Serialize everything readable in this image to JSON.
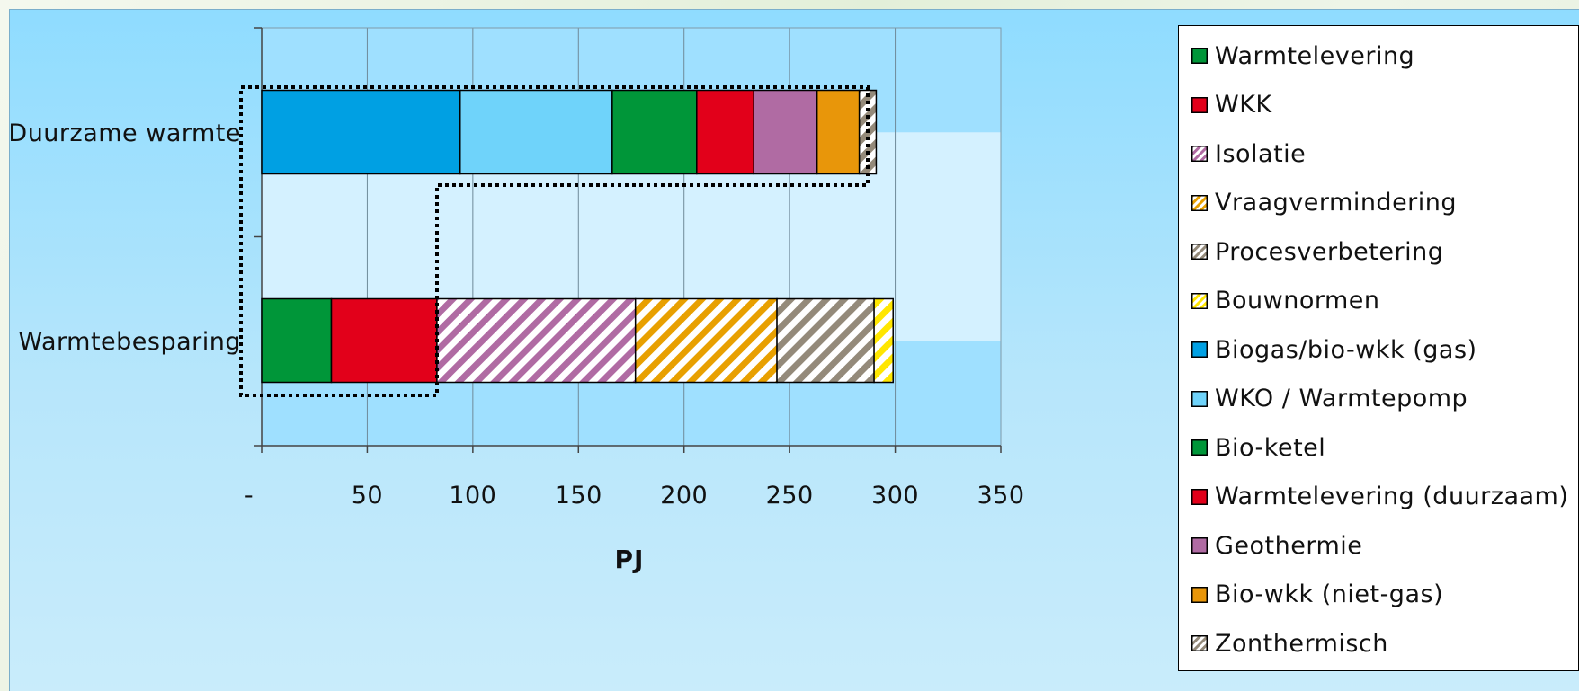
{
  "chart_data": {
    "type": "bar",
    "orientation": "horizontal",
    "stacked": true,
    "title": "",
    "xlabel": "PJ",
    "ylabel": "",
    "xlim": [
      0,
      350
    ],
    "x_ticks": [
      0,
      50,
      100,
      150,
      200,
      250,
      300,
      350
    ],
    "x_tick_labels": [
      "-",
      "50",
      "100",
      "150",
      "200",
      "250",
      "300",
      "350"
    ],
    "grid": "vertical",
    "legend_position": "right",
    "categories": [
      "Duurzame warmte",
      "Warmtebesparing"
    ],
    "series": [
      {
        "name": "Warmtelevering",
        "color": "#009639",
        "pattern": "solid",
        "values": [
          0,
          33
        ]
      },
      {
        "name": "WKK",
        "color": "#e2001a",
        "pattern": "solid",
        "values": [
          0,
          50
        ]
      },
      {
        "name": "Isolatie",
        "color": "#b06ba3",
        "pattern": "hatch",
        "values": [
          0,
          94
        ]
      },
      {
        "name": "Vraagvermindering",
        "color": "#e8a000",
        "pattern": "hatch",
        "values": [
          0,
          67
        ]
      },
      {
        "name": "Procesverbetering",
        "color": "#948a7a",
        "pattern": "hatch",
        "values": [
          0,
          46
        ]
      },
      {
        "name": "Bouwnormen",
        "color": "#ffe600",
        "pattern": "hatch",
        "values": [
          0,
          9
        ]
      },
      {
        "name": "Biogas/bio-wkk (gas)",
        "color": "#00a0e3",
        "pattern": "solid",
        "values": [
          94,
          0
        ]
      },
      {
        "name": "WKO / Warmtepomp",
        "color": "#6fd3fa",
        "pattern": "solid",
        "values": [
          72,
          0
        ]
      },
      {
        "name": "Bio-ketel",
        "color": "#009639",
        "pattern": "solid",
        "values": [
          40,
          0
        ]
      },
      {
        "name": "Warmtelevering (duurzaam)",
        "color": "#e2001a",
        "pattern": "solid",
        "values": [
          27,
          0
        ]
      },
      {
        "name": "Geothermie",
        "color": "#b06ba3",
        "pattern": "solid",
        "values": [
          30,
          0
        ]
      },
      {
        "name": "Bio-wkk (niet-gas)",
        "color": "#e8960a",
        "pattern": "solid",
        "values": [
          20,
          0
        ]
      },
      {
        "name": "Zonthermisch",
        "color": "#948a7a",
        "pattern": "hatch",
        "values": [
          8,
          0
        ]
      }
    ],
    "annotations": [
      {
        "type": "dotted-outline",
        "description_from": "overlap"
      }
    ]
  }
}
